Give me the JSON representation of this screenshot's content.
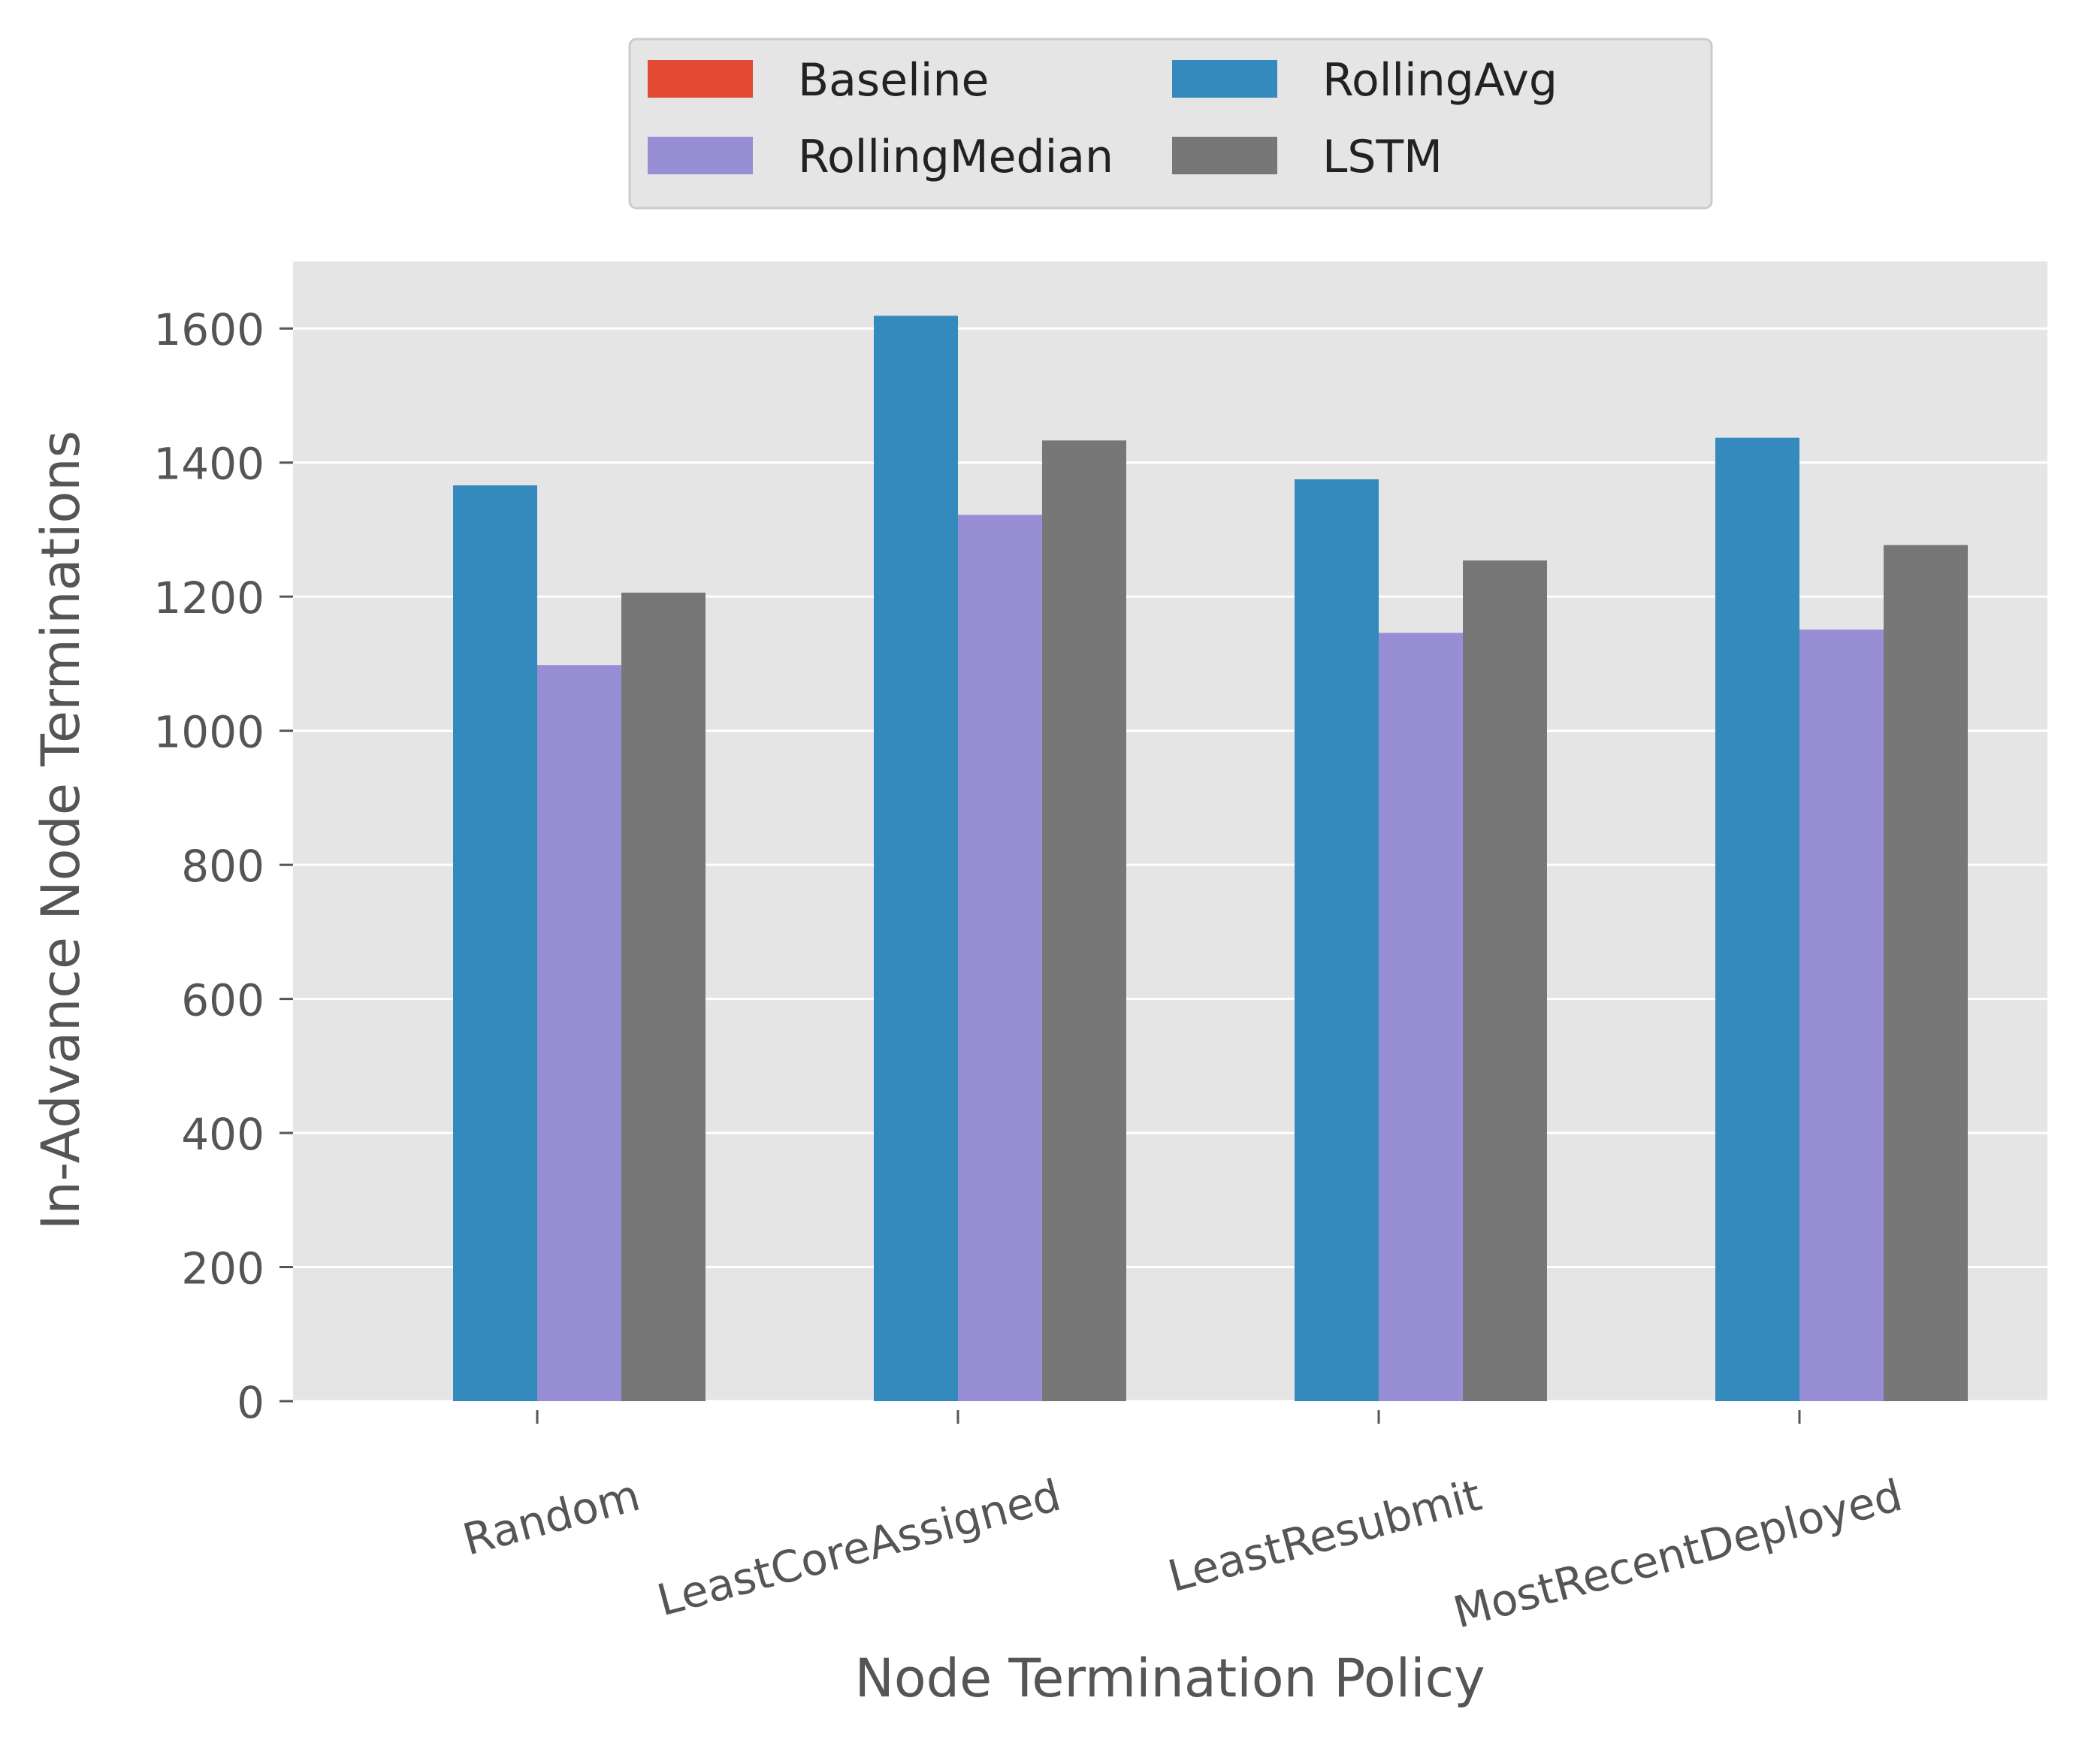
{
  "chart_data": {
    "type": "bar",
    "title": "",
    "xlabel": "Node Termination Policy",
    "ylabel": "In-Advance Node Terminations",
    "categories": [
      "Random",
      "LeastCoreAssigned",
      "LeastResubmit",
      "MostRecentDeployed"
    ],
    "series": [
      {
        "name": "Baseline",
        "color": "#E24A33",
        "values": [
          0,
          0,
          0,
          0
        ]
      },
      {
        "name": "RollingAvg",
        "color": "#348ABD",
        "values": [
          1366,
          1619,
          1375,
          1437
        ]
      },
      {
        "name": "RollingMedian",
        "color": "#988ED5",
        "values": [
          1098,
          1322,
          1146,
          1151
        ]
      },
      {
        "name": "LSTM",
        "color": "#777777",
        "values": [
          1206,
          1433,
          1254,
          1277
        ]
      }
    ],
    "yticks": [
      0,
      200,
      400,
      600,
      800,
      1000,
      1200,
      1400,
      1600
    ],
    "ylim": [
      0,
      1700
    ],
    "grid": true,
    "legend": {
      "placement": "top-center, above plot",
      "columns": 2
    },
    "background": "#E5E5E5",
    "xtick_rotation_deg": -15
  }
}
